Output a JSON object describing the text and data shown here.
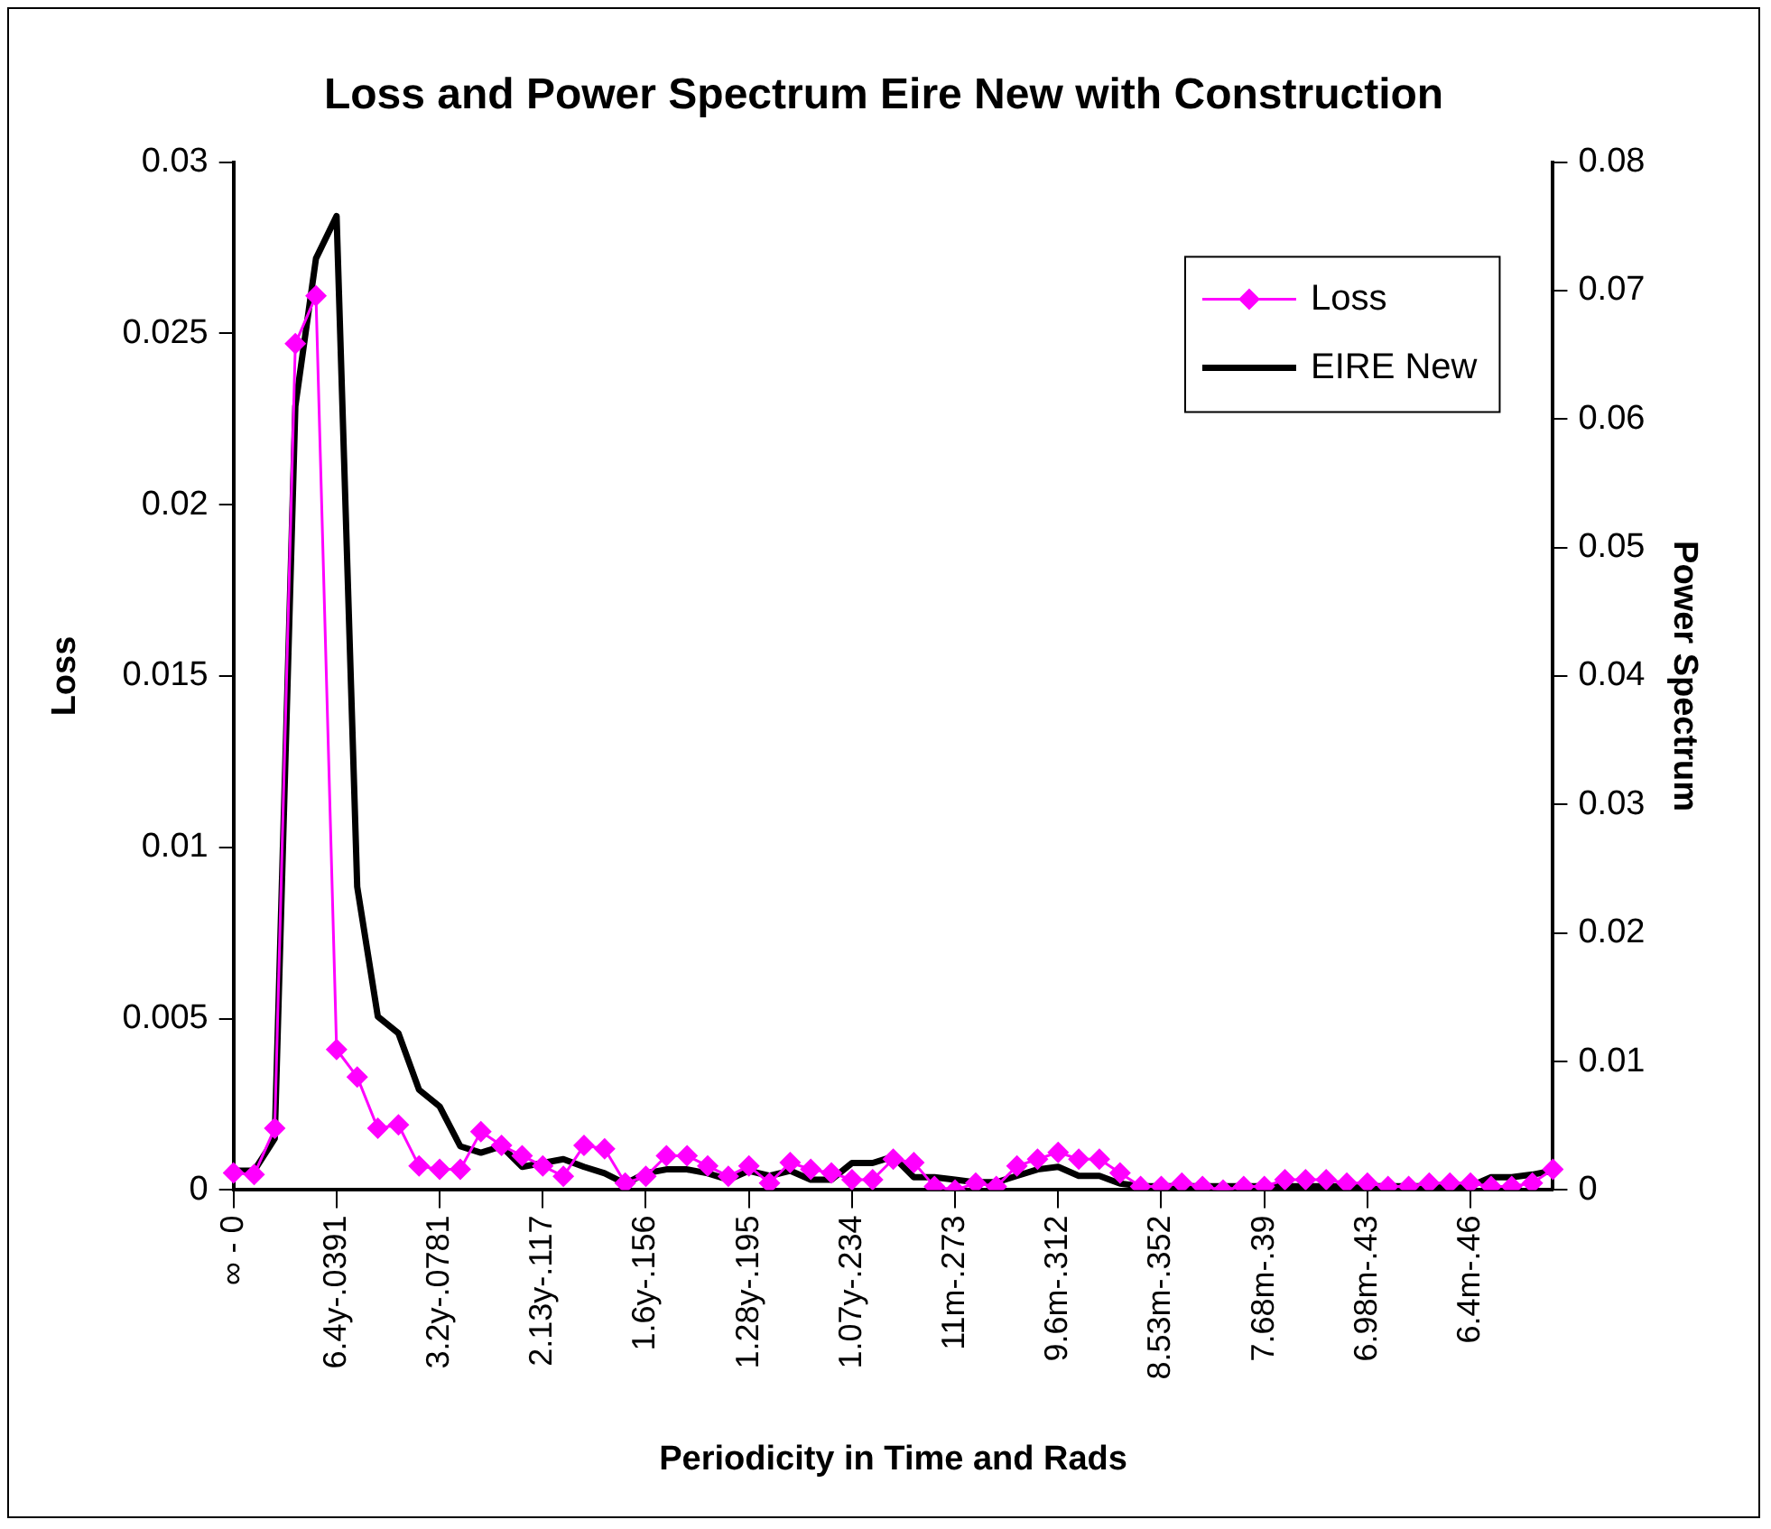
{
  "chart_data": {
    "type": "line",
    "title": "Loss and Power Spectrum Eire New with Construction",
    "xlabel": "Periodicity in Time and Rads",
    "ylabel": "Loss",
    "y2label": "Power Spectrum",
    "categories": [
      "∞ - 0",
      null,
      null,
      null,
      null,
      "6.4y-.0391",
      null,
      null,
      null,
      null,
      "3.2y-.0781",
      null,
      null,
      null,
      null,
      "2.13y-.117",
      null,
      null,
      null,
      null,
      "1.6y-.156",
      null,
      null,
      null,
      null,
      "1.28y-.195",
      null,
      null,
      null,
      null,
      "1.07y-.234",
      null,
      null,
      null,
      null,
      "11m-.273",
      null,
      null,
      null,
      null,
      "9.6m-.312",
      null,
      null,
      null,
      null,
      "8.53m-.352",
      null,
      null,
      null,
      null,
      "7.68m-.39",
      null,
      null,
      null,
      null,
      "6.98m-.43",
      null,
      null,
      null,
      null,
      "6.4m-.46",
      null,
      null,
      null,
      null
    ],
    "series": [
      {
        "name": "Loss",
        "color": "#ff00ff",
        "marker": "diamond",
        "values": [
          0.0005,
          0.00045,
          0.0018,
          0.0247,
          0.0261,
          0.0041,
          0.0033,
          0.0018,
          0.0019,
          0.0007,
          0.0006,
          0.0006,
          0.0017,
          0.0013,
          0.001,
          0.0007,
          0.0004,
          0.0013,
          0.0012,
          0.0002,
          0.0004,
          0.001,
          0.001,
          0.0007,
          0.0004,
          0.0007,
          0.0002,
          0.0008,
          0.0006,
          0.0005,
          0.0003,
          0.0003,
          0.0009,
          0.0008,
          0.0001,
          0,
          0.0002,
          0.0001,
          0.0007,
          0.0009,
          0.0011,
          0.0009,
          0.0009,
          0.0005,
          0.0001,
          0.0001,
          0.0002,
          0.0001,
          0,
          0.0001,
          0.0001,
          0.0003,
          0.0003,
          0.0003,
          0.0002,
          0.0002,
          0.0001,
          0.0001,
          0.0002,
          0.0002,
          0.0002,
          0.0001,
          0.0001,
          0.0002,
          0.0006
        ]
      },
      {
        "name": "EIRE New",
        "color": "#000000",
        "marker": "none",
        "axis": "y2",
        "values": [
          0.0015,
          0.0015,
          0.004,
          0.061,
          0.0725,
          0.0758,
          0.0236,
          0.0135,
          0.0122,
          0.0078,
          0.0065,
          0.0034,
          0.0029,
          0.0034,
          0.0018,
          0.0021,
          0.0024,
          0.0018,
          0.0013,
          0.0005,
          0.0013,
          0.0016,
          0.0016,
          0.0013,
          0.0008,
          0.0015,
          0.0011,
          0.0015,
          0.0008,
          0.0008,
          0.0021,
          0.0021,
          0.0026,
          0.001,
          0.001,
          0.0008,
          0.0006,
          0.0006,
          0.0011,
          0.0016,
          0.0018,
          0.0011,
          0.0011,
          0.0005,
          0.0003,
          0.0003,
          0.0003,
          0.0003,
          0.0003,
          0.0003,
          0.0003,
          0.0003,
          0.0003,
          0.0003,
          0.0003,
          0.0003,
          0.0003,
          0.0003,
          0.0003,
          0.0003,
          0.0003,
          0.001,
          0.001,
          0.0012,
          0.0015
        ]
      }
    ],
    "ylim": [
      0,
      0.03
    ],
    "yticks": [
      0,
      0.005,
      0.01,
      0.015,
      0.02,
      0.025,
      0.03
    ],
    "y2lim": [
      0,
      0.08
    ],
    "y2ticks": [
      0,
      0.01,
      0.02,
      0.03,
      0.04,
      0.05,
      0.06,
      0.07,
      0.08
    ],
    "legend": "top right",
    "grid": false
  }
}
